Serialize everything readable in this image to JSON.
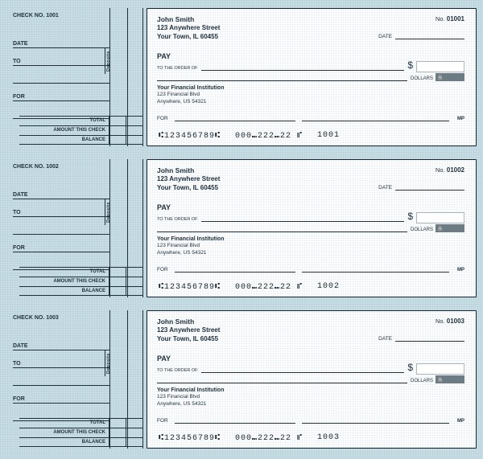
{
  "labels": {
    "stub_checkno_prefix": "CHECK NO.",
    "date": "DATE",
    "to": "TO",
    "for": "FOR",
    "total": "TOTAL",
    "amount_this_check": "AMOUNT THIS CHECK",
    "balance": "BALANCE",
    "deposits": "Deposits",
    "check_no_prefix": "No.",
    "pay": "PAY",
    "to_the_order_of": "TO THE ORDER OF",
    "dollars": "DOLLARS",
    "for_memo": "FOR",
    "mp": "MP",
    "security": "Security features included"
  },
  "payer": {
    "name": "John Smith",
    "street": "123 Anywhere Street",
    "city": "Your Town, IL 60455"
  },
  "bank": {
    "name": "Your Financial Institution",
    "street": "123 Financial Blvd",
    "city": "Anywhere, US 54321"
  },
  "micr": {
    "routing": "⑆123456789⑆",
    "account": "000⑉222⑉22  ⑈"
  },
  "checks": [
    {
      "stub_no": "1001",
      "check_no": "01001",
      "micr_seq": "1001"
    },
    {
      "stub_no": "1002",
      "check_no": "01002",
      "micr_seq": "1002"
    },
    {
      "stub_no": "1003",
      "check_no": "01003",
      "micr_seq": "1003"
    }
  ],
  "colors": {
    "page_bg": "#c8dde4",
    "line": "#1f2f3b",
    "check_border": "#122431"
  }
}
